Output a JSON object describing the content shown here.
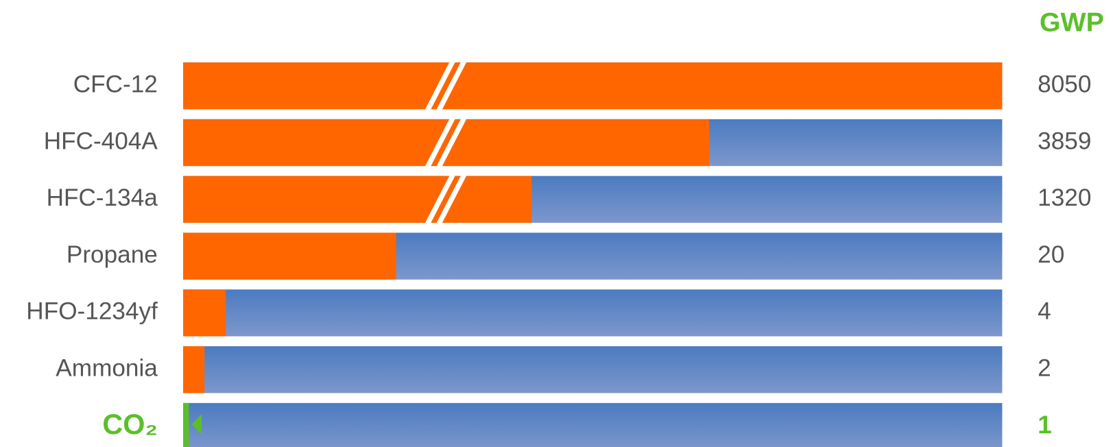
{
  "chart_data": {
    "type": "bar",
    "value_header": "GWP",
    "categories": [
      "CFC-12",
      "HFC-404A",
      "HFC-134a",
      "Propane",
      "HFO-1234yf",
      "Ammonia",
      "CO₂"
    ],
    "values": [
      8050,
      3859,
      1320,
      20,
      4,
      2,
      1
    ],
    "colors": [
      "#ff6600",
      "#ff6600",
      "#ff6600",
      "#ff6600",
      "#ff6600",
      "#ff6600",
      "#5cbf2a"
    ],
    "track_color": "#5a85c4",
    "accent_color": "#5cbf2a",
    "broken_axis": true
  }
}
